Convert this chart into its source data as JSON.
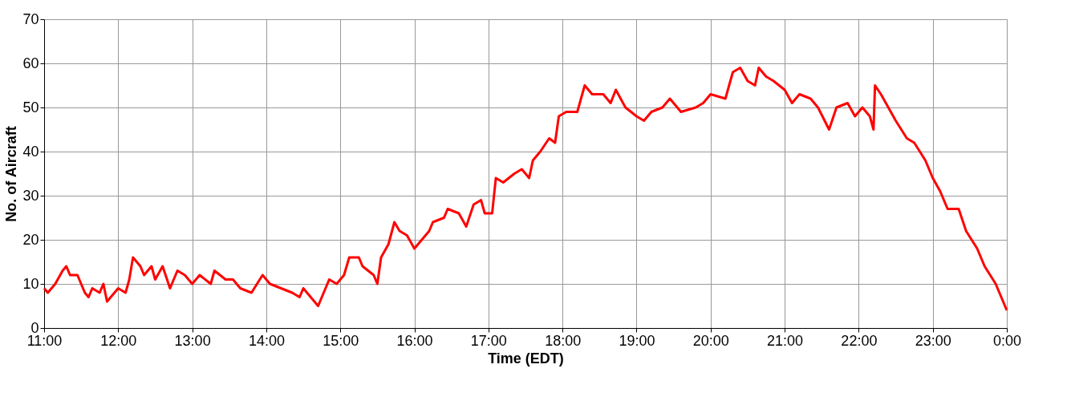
{
  "chart_data": {
    "type": "line",
    "xlabel": "Time (EDT)",
    "ylabel": "No. of Aircraft",
    "xlim": [
      11,
      24
    ],
    "ylim": [
      0,
      70
    ],
    "xticks": [
      {
        "value": 11,
        "label": "11:00"
      },
      {
        "value": 12,
        "label": "12:00"
      },
      {
        "value": 13,
        "label": "13:00"
      },
      {
        "value": 14,
        "label": "14:00"
      },
      {
        "value": 15,
        "label": "15:00"
      },
      {
        "value": 16,
        "label": "16:00"
      },
      {
        "value": 17,
        "label": "17:00"
      },
      {
        "value": 18,
        "label": "18:00"
      },
      {
        "value": 19,
        "label": "19:00"
      },
      {
        "value": 20,
        "label": "20:00"
      },
      {
        "value": 21,
        "label": "21:00"
      },
      {
        "value": 22,
        "label": "22:00"
      },
      {
        "value": 23,
        "label": "23:00"
      },
      {
        "value": 24,
        "label": "0:00"
      }
    ],
    "yticks": [
      0,
      10,
      20,
      30,
      40,
      50,
      60,
      70
    ],
    "grid": true,
    "legend": false,
    "marker": "none",
    "line_style": "solid",
    "x": [
      11.0,
      11.05,
      11.15,
      11.25,
      11.3,
      11.35,
      11.45,
      11.55,
      11.6,
      11.65,
      11.75,
      11.8,
      11.85,
      11.95,
      12.0,
      12.1,
      12.15,
      12.2,
      12.3,
      12.35,
      12.45,
      12.5,
      12.6,
      12.7,
      12.8,
      12.9,
      13.0,
      13.1,
      13.25,
      13.3,
      13.45,
      13.55,
      13.65,
      13.8,
      13.95,
      14.05,
      14.2,
      14.35,
      14.45,
      14.5,
      14.6,
      14.7,
      14.8,
      14.85,
      14.95,
      15.05,
      15.12,
      15.25,
      15.3,
      15.45,
      15.5,
      15.55,
      15.65,
      15.73,
      15.8,
      15.9,
      16.0,
      16.1,
      16.2,
      16.25,
      16.4,
      16.45,
      16.6,
      16.7,
      16.8,
      16.9,
      16.95,
      17.05,
      17.1,
      17.2,
      17.35,
      17.45,
      17.55,
      17.6,
      17.7,
      17.82,
      17.9,
      17.95,
      18.05,
      18.2,
      18.3,
      18.4,
      18.55,
      18.65,
      18.72,
      18.85,
      19.0,
      19.1,
      19.2,
      19.35,
      19.45,
      19.6,
      19.8,
      19.9,
      20.0,
      20.2,
      20.3,
      20.4,
      20.5,
      20.6,
      20.65,
      20.75,
      20.85,
      21.0,
      21.1,
      21.2,
      21.35,
      21.45,
      21.6,
      21.7,
      21.85,
      21.95,
      22.05,
      22.15,
      22.2,
      22.22,
      22.3,
      22.4,
      22.5,
      22.65,
      22.75,
      22.9,
      23.0,
      23.1,
      23.2,
      23.35,
      23.45,
      23.6,
      23.7,
      23.85,
      23.95,
      24.0
    ],
    "series": [
      {
        "color": "#ff0000",
        "values": [
          9,
          8,
          10,
          13,
          14,
          12,
          12,
          8,
          7,
          9,
          8,
          10,
          6,
          8,
          9,
          8,
          11,
          16,
          14,
          12,
          14,
          11,
          14,
          9,
          13,
          12,
          10,
          12,
          10,
          13,
          11,
          11,
          9,
          8,
          12,
          10,
          9,
          8,
          7,
          9,
          7,
          5,
          9,
          11,
          10,
          12,
          16,
          16,
          14,
          12,
          10,
          16,
          19,
          24,
          22,
          21,
          18,
          20,
          22,
          24,
          25,
          27,
          26,
          23,
          28,
          29,
          26,
          26,
          34,
          33,
          35,
          36,
          34,
          38,
          40,
          43,
          42,
          48,
          49,
          49,
          55,
          53,
          53,
          51,
          54,
          50,
          48,
          47,
          49,
          50,
          52,
          49,
          50,
          51,
          53,
          52,
          58,
          59,
          56,
          55,
          59,
          57,
          56,
          54,
          51,
          53,
          52,
          50,
          45,
          50,
          51,
          48,
          50,
          48,
          45,
          55,
          53,
          50,
          47,
          43,
          42,
          38,
          34,
          31,
          27,
          27,
          22,
          18,
          14,
          10,
          6,
          4
        ]
      }
    ]
  }
}
